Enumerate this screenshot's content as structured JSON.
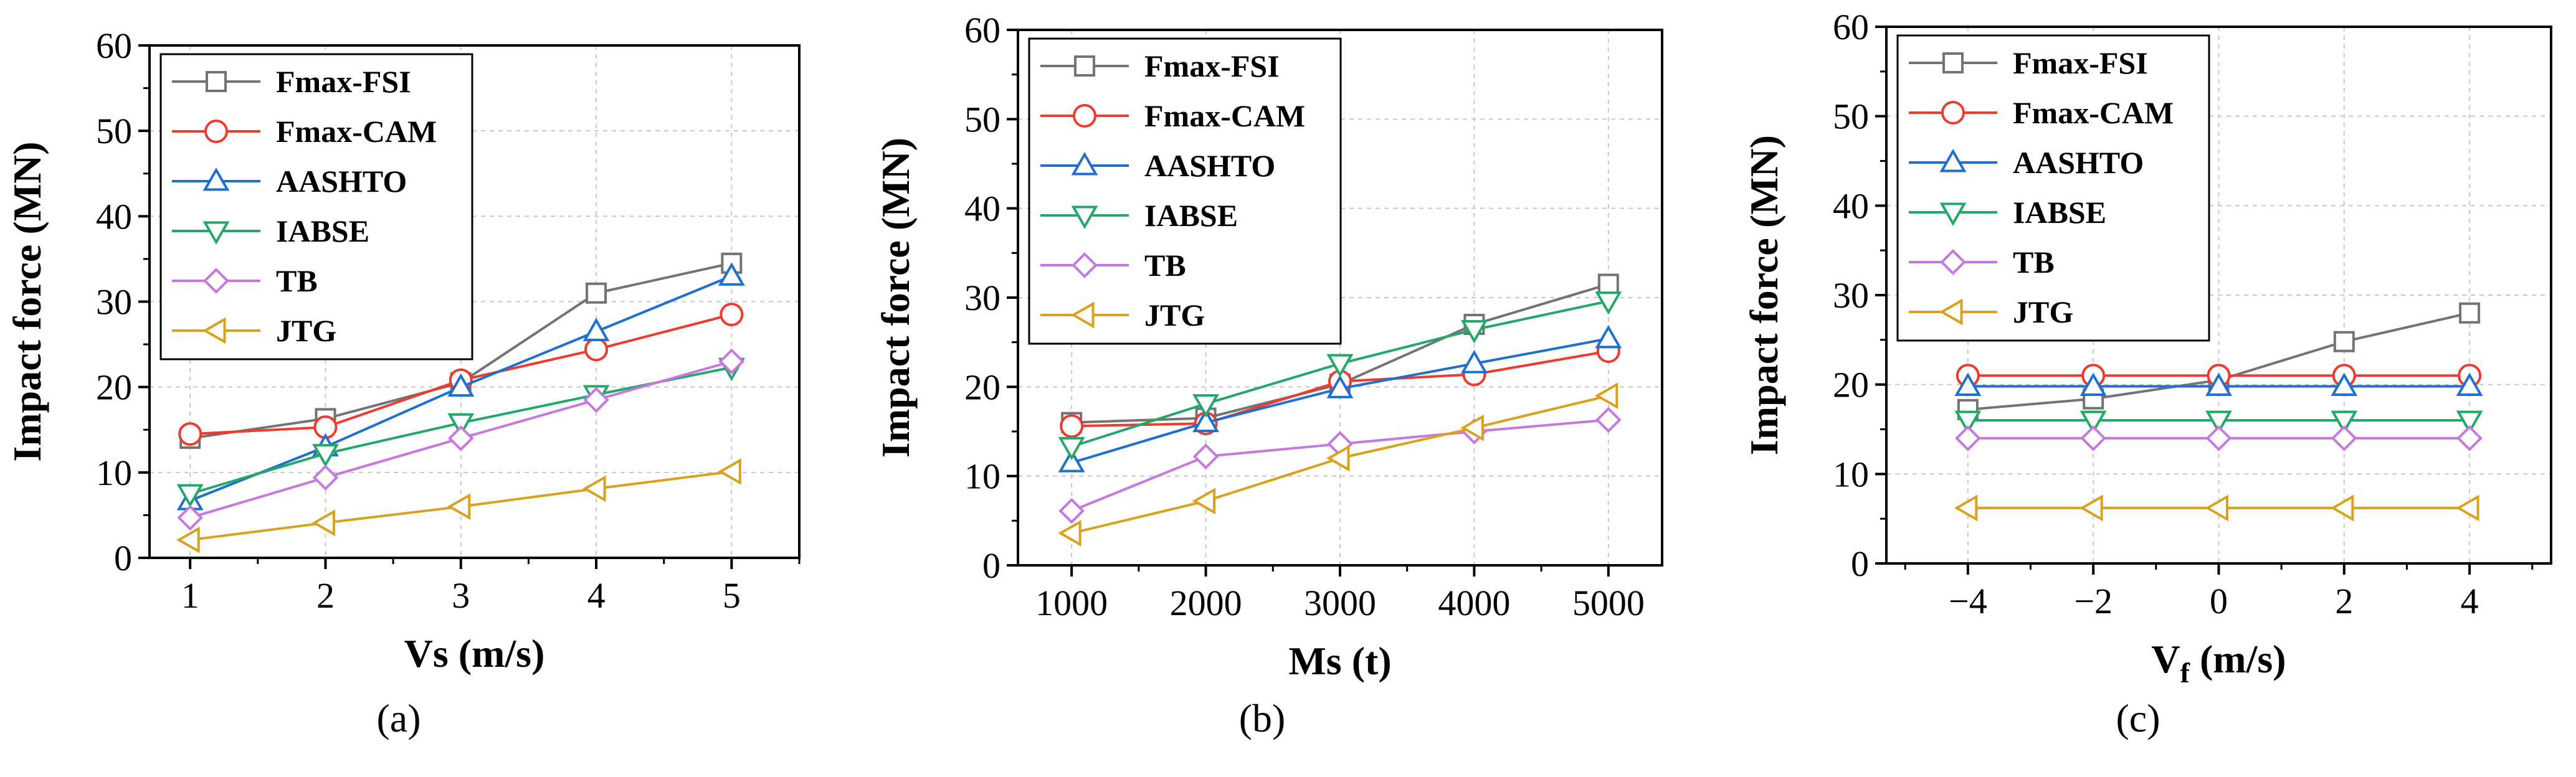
{
  "legend": [
    {
      "name": "Fmax-FSI",
      "color": "#737373",
      "marker": "square"
    },
    {
      "name": "Fmax-CAM",
      "color": "#ee3b2f",
      "marker": "circle"
    },
    {
      "name": "AASHTO",
      "color": "#1f6fd0",
      "marker": "triangle-up"
    },
    {
      "name": "IABSE",
      "color": "#23a868",
      "marker": "triangle-down"
    },
    {
      "name": "TB",
      "color": "#c777e0",
      "marker": "diamond"
    },
    {
      "name": "JTG",
      "color": "#daa11f",
      "marker": "triangle-left"
    }
  ],
  "chart_data": [
    {
      "type": "line",
      "panel_label": "(a)",
      "xlabel": "Vs (m/s)",
      "ylabel": "Impact force (MN)",
      "xlim": [
        0.7,
        5.5
      ],
      "ylim": [
        0,
        60
      ],
      "xticks": [
        1,
        2,
        3,
        4,
        5
      ],
      "xtick_labels": [
        "1",
        "2",
        "3",
        "4",
        "5"
      ],
      "yticks": [
        0,
        10,
        20,
        30,
        40,
        50,
        60
      ],
      "grid": true,
      "legend_position": "top-left",
      "x": [
        1,
        2,
        3,
        4,
        5
      ],
      "series": [
        {
          "name": "Fmax-FSI",
          "values": [
            14.0,
            16.3,
            20.5,
            31.0,
            34.5
          ]
        },
        {
          "name": "Fmax-CAM",
          "values": [
            14.5,
            15.3,
            20.8,
            24.4,
            28.5
          ]
        },
        {
          "name": "AASHTO",
          "values": [
            6.7,
            13.0,
            20.0,
            26.5,
            33.0
          ]
        },
        {
          "name": "IABSE",
          "values": [
            7.5,
            12.2,
            15.8,
            19.1,
            22.3
          ]
        },
        {
          "name": "TB",
          "values": [
            4.7,
            9.4,
            14.0,
            18.5,
            23.0
          ]
        },
        {
          "name": "JTG",
          "values": [
            2.1,
            4.1,
            6.0,
            8.1,
            10.1
          ]
        }
      ]
    },
    {
      "type": "line",
      "panel_label": "(b)",
      "xlabel": "Ms (t)",
      "ylabel": "Impact force (MN)",
      "xlim": [
        600,
        5400
      ],
      "ylim": [
        0,
        60
      ],
      "xticks": [
        1000,
        2000,
        3000,
        4000,
        5000
      ],
      "xtick_labels": [
        "1000",
        "2000",
        "3000",
        "4000",
        "5000"
      ],
      "yticks": [
        0,
        10,
        20,
        30,
        40,
        50,
        60
      ],
      "grid": true,
      "legend_position": "top-left",
      "x": [
        1000,
        2000,
        3000,
        4000,
        5000
      ],
      "series": [
        {
          "name": "Fmax-FSI",
          "values": [
            16.0,
            16.5,
            20.3,
            27.0,
            31.5
          ]
        },
        {
          "name": "Fmax-CAM",
          "values": [
            15.6,
            15.9,
            20.6,
            21.4,
            24.0
          ]
        },
        {
          "name": "AASHTO",
          "values": [
            11.5,
            16.0,
            19.8,
            22.6,
            25.4
          ]
        },
        {
          "name": "IABSE",
          "values": [
            13.3,
            18.1,
            22.6,
            26.4,
            29.6
          ]
        },
        {
          "name": "TB",
          "values": [
            6.1,
            12.2,
            13.6,
            15.0,
            16.3
          ]
        },
        {
          "name": "JTG",
          "values": [
            3.6,
            7.2,
            12.0,
            15.4,
            19.0
          ]
        }
      ]
    },
    {
      "type": "line",
      "panel_label": "(c)",
      "xlabel": "V",
      "xlabel_sub": "f",
      "xlabel_unit": " (m/s)",
      "ylabel": "Impact force (MN)",
      "xlim": [
        -5.3,
        5.3
      ],
      "ylim": [
        0,
        60
      ],
      "xticks": [
        -4,
        -2,
        0,
        2,
        4
      ],
      "xtick_labels": [
        "−4",
        "−2",
        "0",
        "2",
        "4"
      ],
      "yticks": [
        0,
        10,
        20,
        30,
        40,
        50,
        60
      ],
      "grid": true,
      "legend_position": "top-left",
      "x": [
        -4,
        -2,
        0,
        2,
        4
      ],
      "series": [
        {
          "name": "Fmax-FSI",
          "values": [
            17.2,
            18.4,
            20.5,
            24.8,
            28.0
          ]
        },
        {
          "name": "Fmax-CAM",
          "values": [
            21.0,
            21.0,
            21.0,
            21.0,
            21.0
          ]
        },
        {
          "name": "AASHTO",
          "values": [
            19.8,
            19.8,
            19.8,
            19.8,
            19.8
          ]
        },
        {
          "name": "IABSE",
          "values": [
            16.0,
            16.0,
            16.0,
            16.0,
            16.0
          ]
        },
        {
          "name": "TB",
          "values": [
            14.0,
            14.0,
            14.0,
            14.0,
            14.0
          ]
        },
        {
          "name": "JTG",
          "values": [
            6.2,
            6.2,
            6.2,
            6.2,
            6.2
          ]
        }
      ]
    }
  ]
}
